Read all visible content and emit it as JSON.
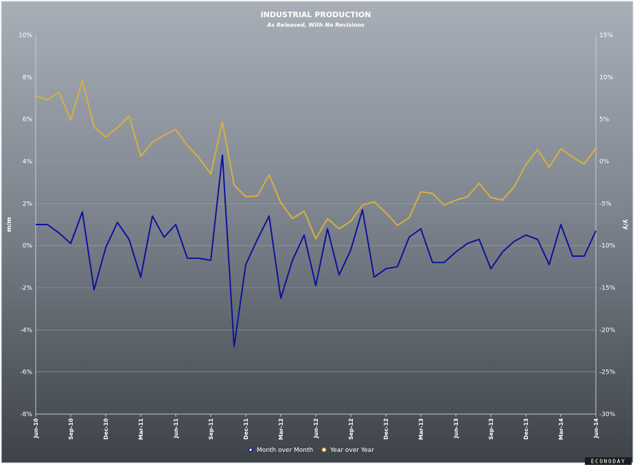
{
  "chart_data": {
    "type": "line",
    "title": "INDUSTRIAL PRODUCTION",
    "subtitle": "As Released, With No Revisions",
    "ylabel_left": "m/m",
    "ylabel_right": "y/y",
    "ylim_left": [
      -8,
      10
    ],
    "ylim_right": [
      -30,
      15
    ],
    "yticks_left": [
      "10%",
      "8%",
      "6%",
      "4%",
      "2%",
      "0%",
      "-2%",
      "-4%",
      "-6%",
      "-8%"
    ],
    "yticks_right": [
      "15%",
      "10%",
      "5%",
      "0%",
      "-5%",
      "-10%",
      "-15%",
      "-20%",
      "-25%",
      "-30%"
    ],
    "x_tick_labels": [
      "Jun-10",
      "Sep-10",
      "Dec-10",
      "Mar-11",
      "Jun-11",
      "Sep-11",
      "Dec-11",
      "Mar-12",
      "Jun-12",
      "Sep-12",
      "Dec-12",
      "Mar-13",
      "Jun-13",
      "Sep-13",
      "Dec-13",
      "Mar-14",
      "Jun-14"
    ],
    "x": [
      "Jun-10",
      "Jul-10",
      "Aug-10",
      "Sep-10",
      "Oct-10",
      "Nov-10",
      "Dec-10",
      "Jan-11",
      "Feb-11",
      "Mar-11",
      "Apr-11",
      "May-11",
      "Jun-11",
      "Jul-11",
      "Aug-11",
      "Sep-11",
      "Oct-11",
      "Nov-11",
      "Dec-11",
      "Jan-12",
      "Feb-12",
      "Mar-12",
      "Apr-12",
      "May-12",
      "Jun-12",
      "Jul-12",
      "Aug-12",
      "Sep-12",
      "Oct-12",
      "Nov-12",
      "Dec-12",
      "Jan-13",
      "Feb-13",
      "Mar-13",
      "Apr-13",
      "May-13",
      "Jun-13",
      "Jul-13",
      "Aug-13",
      "Sep-13",
      "Oct-13",
      "Nov-13",
      "Dec-13",
      "Jan-14",
      "Feb-14",
      "Mar-14",
      "Apr-14",
      "May-14",
      "Jun-14"
    ],
    "grid": true,
    "legend_position": "bottom",
    "series": [
      {
        "name": "Month over Month",
        "axis": "left",
        "color": "#0b129c",
        "values": [
          1.0,
          1.0,
          0.6,
          0.1,
          1.6,
          -2.1,
          -0.1,
          1.1,
          0.3,
          -1.5,
          1.4,
          0.4,
          1.0,
          -0.6,
          -0.6,
          -0.7,
          4.3,
          -4.8,
          -0.9,
          0.3,
          1.4,
          -2.5,
          -0.7,
          0.5,
          -1.9,
          0.8,
          -1.4,
          -0.2,
          1.7,
          -1.5,
          -1.1,
          -1.0,
          0.4,
          0.8,
          -0.8,
          -0.8,
          -0.3,
          0.1,
          0.3,
          -1.1,
          -0.3,
          0.2,
          0.5,
          0.3,
          -0.9,
          1.0,
          -0.5,
          -0.5,
          0.7
        ]
      },
      {
        "name": "Year over Year",
        "axis": "right",
        "color": "#d9b13a",
        "values": [
          7.8,
          7.3,
          8.2,
          4.9,
          9.6,
          4.1,
          2.9,
          4.0,
          5.4,
          0.6,
          2.3,
          3.1,
          3.8,
          1.9,
          0.4,
          -1.5,
          4.7,
          -2.8,
          -4.2,
          -4.1,
          -1.6,
          -4.9,
          -6.8,
          -5.9,
          -9.2,
          -6.8,
          -8.0,
          -7.1,
          -5.2,
          -4.8,
          -6.1,
          -7.6,
          -6.7,
          -3.6,
          -3.8,
          -5.2,
          -4.6,
          -4.2,
          -2.6,
          -4.3,
          -4.6,
          -3.0,
          -0.4,
          1.4,
          -0.7,
          1.5,
          0.5,
          -0.3,
          1.6
        ]
      }
    ],
    "brand": "ECONODAY"
  }
}
